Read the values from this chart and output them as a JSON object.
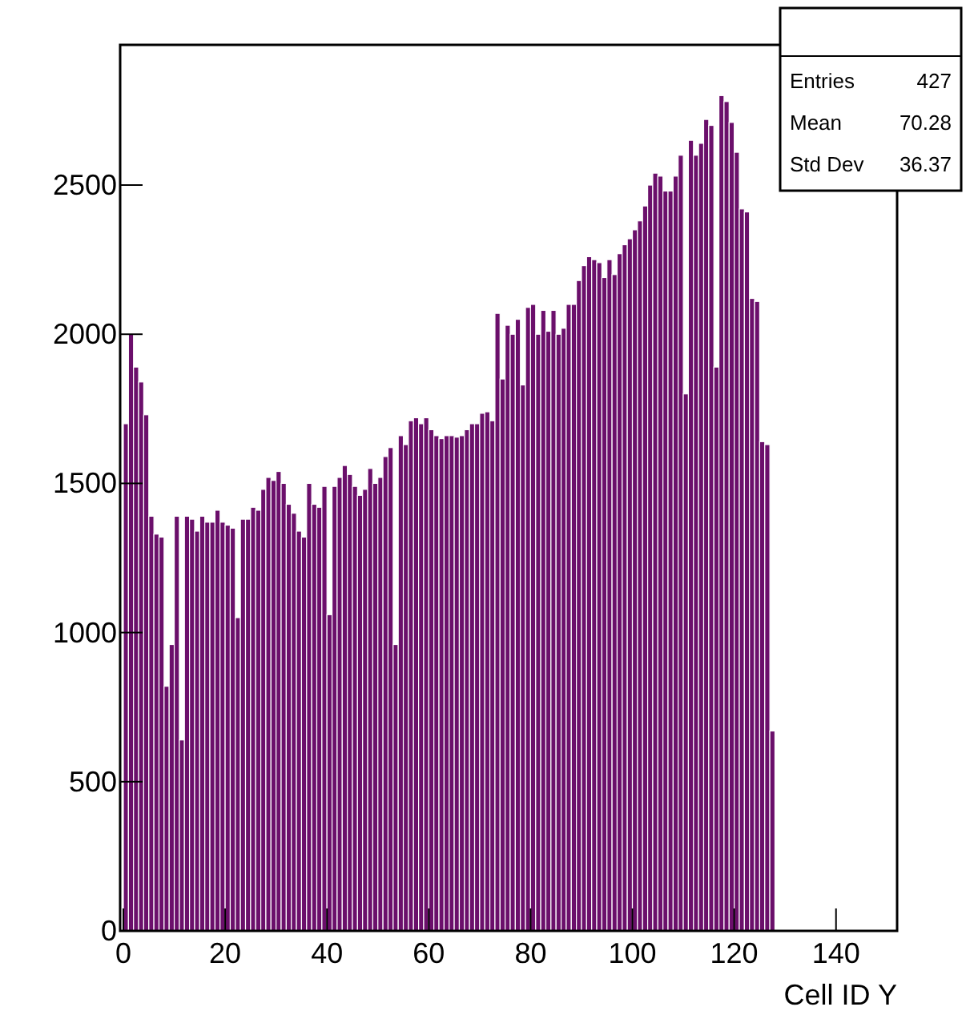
{
  "chart_data": {
    "type": "histogram",
    "xlabel": "Cell ID Y",
    "color": "#6b0f6b",
    "bins": [
      0,
      1,
      2,
      3,
      4,
      5,
      6,
      7,
      8,
      9,
      10,
      11,
      12,
      13,
      14,
      15,
      16,
      17,
      18,
      19,
      20,
      21,
      22,
      23,
      24,
      25,
      26,
      27,
      28,
      29,
      30,
      31,
      32,
      33,
      34,
      35,
      36,
      37,
      38,
      39,
      40,
      41,
      42,
      43,
      44,
      45,
      46,
      47,
      48,
      49,
      50,
      51,
      52,
      53,
      54,
      55,
      56,
      57,
      58,
      59,
      60,
      61,
      62,
      63,
      64,
      65,
      66,
      67,
      68,
      69,
      70,
      71,
      72,
      73,
      74,
      75,
      76,
      77,
      78,
      79,
      80,
      81,
      82,
      83,
      84,
      85,
      86,
      87,
      88,
      89,
      90,
      91,
      92,
      93,
      94,
      95,
      96,
      97,
      98,
      99,
      100,
      101,
      102,
      103,
      104,
      105,
      106,
      107,
      108,
      109,
      110,
      111,
      112,
      113,
      114,
      115,
      116,
      117,
      118,
      119,
      120,
      121,
      122,
      123,
      124,
      125,
      126,
      127,
      128
    ],
    "values": [
      1700,
      2000,
      1890,
      1840,
      1730,
      1390,
      1330,
      1320,
      820,
      960,
      1390,
      640,
      1390,
      1380,
      1340,
      1390,
      1370,
      1370,
      1410,
      1370,
      1360,
      1350,
      1050,
      1380,
      1380,
      1420,
      1410,
      1480,
      1520,
      1510,
      1540,
      1500,
      1430,
      1400,
      1340,
      1320,
      1500,
      1430,
      1420,
      1490,
      1060,
      1490,
      1520,
      1560,
      1530,
      1490,
      1460,
      1480,
      1550,
      1500,
      1520,
      1590,
      1620,
      960,
      1660,
      1630,
      1710,
      1720,
      1700,
      1720,
      1680,
      1660,
      1650,
      1660,
      1660,
      1655,
      1660,
      1680,
      1700,
      1700,
      1735,
      1740,
      1710,
      2070,
      1850,
      2030,
      2000,
      2050,
      1830,
      2090,
      2100,
      2000,
      2080,
      2010,
      2080,
      2000,
      2020,
      2100,
      2100,
      2180,
      2230,
      2260,
      2250,
      2240,
      2190,
      2250,
      2200,
      2270,
      2300,
      2320,
      2350,
      2380,
      2430,
      2500,
      2540,
      2530,
      2480,
      2480,
      2530,
      2600,
      1800,
      2650,
      2600,
      2640,
      2720,
      2700,
      1890,
      2800,
      2780,
      2710,
      2610,
      2420,
      2410,
      2120,
      2110,
      1640,
      1630,
      670
    ],
    "xlim": [
      0,
      152
    ],
    "xticks": [
      0,
      20,
      40,
      60,
      80,
      100,
      120,
      140
    ],
    "ylim": [
      0,
      2970
    ],
    "yticks": [
      0,
      500,
      1000,
      1500,
      2000,
      2500
    ],
    "grid": false,
    "annotations": [
      "Entries 427",
      "Mean 70.28",
      "Std Dev 36.37"
    ]
  }
}
